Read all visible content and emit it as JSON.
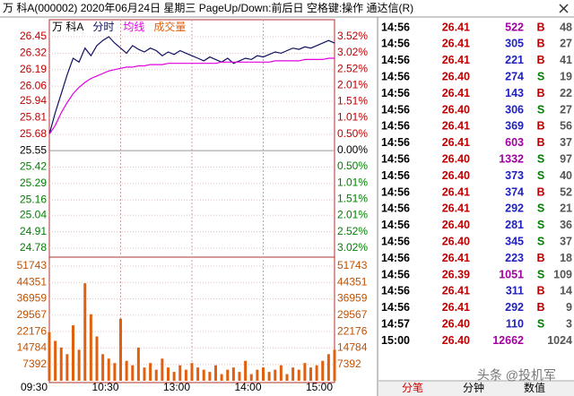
{
  "title_bar": {
    "text": "万 科A(000002) 2020年06月24日 星期三 PageUp/Down:前后日 空格键:操作 通达信(R)"
  },
  "chart_data": [
    {
      "type": "line",
      "title": "万 科A",
      "x": [
        "09:30",
        "09:35",
        "09:40",
        "09:45",
        "09:50",
        "09:55",
        "10:00",
        "10:05",
        "10:10",
        "10:15",
        "10:20",
        "10:25",
        "10:30",
        "10:35",
        "10:40",
        "10:45",
        "10:50",
        "10:55",
        "11:00",
        "11:05",
        "11:10",
        "11:15",
        "11:20",
        "11:25",
        "13:00",
        "13:05",
        "13:10",
        "13:15",
        "13:20",
        "13:25",
        "13:30",
        "13:35",
        "13:40",
        "13:45",
        "13:50",
        "13:55",
        "14:00",
        "14:05",
        "14:10",
        "14:15",
        "14:20",
        "14:25",
        "14:30",
        "14:35",
        "14:40",
        "14:45",
        "14:50",
        "14:55",
        "15:00"
      ],
      "xticks": [
        "09:30",
        "10:30",
        "13:00",
        "14:00",
        "15:00"
      ],
      "series": [
        {
          "name": "分时",
          "color": "#101060",
          "values": [
            25.68,
            25.85,
            26.0,
            26.15,
            26.28,
            26.25,
            26.36,
            26.3,
            26.38,
            26.42,
            26.45,
            26.4,
            26.36,
            26.32,
            26.38,
            26.35,
            26.33,
            26.36,
            26.34,
            26.3,
            26.33,
            26.31,
            26.34,
            26.32,
            26.3,
            26.28,
            26.26,
            26.29,
            26.27,
            26.25,
            26.28,
            26.24,
            26.26,
            26.28,
            26.27,
            26.3,
            26.29,
            26.31,
            26.33,
            26.32,
            26.34,
            26.36,
            26.35,
            26.37,
            26.36,
            26.38,
            26.4,
            26.42,
            26.4
          ]
        },
        {
          "name": "均线",
          "color": "#e000e0",
          "values": [
            25.68,
            25.75,
            25.85,
            25.93,
            26.0,
            26.05,
            26.09,
            26.12,
            26.14,
            26.16,
            26.18,
            26.19,
            26.2,
            26.21,
            26.21,
            26.22,
            26.22,
            26.23,
            26.23,
            26.23,
            26.24,
            26.24,
            26.24,
            26.24,
            26.24,
            26.24,
            26.24,
            26.24,
            26.24,
            26.25,
            26.25,
            26.25,
            26.25,
            26.25,
            26.25,
            26.25,
            26.25,
            26.25,
            26.26,
            26.26,
            26.26,
            26.26,
            26.26,
            26.27,
            26.27,
            26.27,
            26.27,
            26.28,
            26.28
          ]
        }
      ],
      "ylim": [
        24.78,
        26.45
      ],
      "yticks": [
        26.45,
        26.32,
        26.19,
        26.06,
        25.94,
        25.81,
        25.68,
        25.55,
        25.42,
        25.29,
        25.16,
        25.04,
        24.91,
        24.78
      ],
      "y2lim": [
        -3.02,
        3.52
      ],
      "y2ticks": [
        {
          "value": 3.52,
          "label": "3.52%"
        },
        {
          "value": 3.02,
          "label": "3.02%"
        },
        {
          "value": 2.52,
          "label": "2.52%"
        },
        {
          "value": 2.01,
          "label": "2.01%"
        },
        {
          "value": 1.51,
          "label": "1.51%"
        },
        {
          "value": 1.01,
          "label": "1.01%"
        },
        {
          "value": 0.5,
          "label": "0.50%"
        },
        {
          "value": 0,
          "label": "0.00%"
        },
        {
          "value": -0.5,
          "label": "0.50%"
        },
        {
          "value": -1.01,
          "label": "1.01%"
        },
        {
          "value": -1.51,
          "label": "1.51%"
        },
        {
          "value": -2.01,
          "label": "2.01%"
        },
        {
          "value": -2.52,
          "label": "2.52%"
        },
        {
          "value": -3.02,
          "label": "3.02%"
        }
      ],
      "grid": true
    },
    {
      "type": "bar",
      "title": "成交量",
      "color": "#e06010",
      "values": [
        22000,
        18000,
        15000,
        12000,
        25000,
        14000,
        44000,
        30000,
        20000,
        12000,
        10000,
        8000,
        28000,
        9000,
        7000,
        15000,
        6000,
        8000,
        5000,
        10000,
        6000,
        4000,
        7000,
        5000,
        8000,
        6000,
        5000,
        4000,
        7000,
        3000,
        5000,
        6000,
        4000,
        9000,
        3000,
        5000,
        6000,
        4000,
        5000,
        7000,
        3000,
        6000,
        5000,
        8000,
        6000,
        7000,
        9000,
        12000,
        14000
      ],
      "ylim": [
        0,
        51743
      ],
      "yticks": [
        51743,
        44351,
        36959,
        29567,
        22176,
        14784,
        7392
      ]
    }
  ],
  "trades": {
    "rows": [
      {
        "time": "14:56",
        "price": 26.41,
        "volume": 522,
        "volume_color": "#a000a0",
        "side": "B",
        "count": 48
      },
      {
        "time": "14:56",
        "price": 26.41,
        "volume": 305,
        "volume_color": "#2020c0",
        "side": "B",
        "count": 27
      },
      {
        "time": "14:56",
        "price": 26.41,
        "volume": 221,
        "volume_color": "#2020c0",
        "side": "B",
        "count": 41
      },
      {
        "time": "14:56",
        "price": 26.4,
        "volume": 274,
        "volume_color": "#2020c0",
        "side": "S",
        "count": 19
      },
      {
        "time": "14:56",
        "price": 26.41,
        "volume": 143,
        "volume_color": "#2020c0",
        "side": "B",
        "count": 22
      },
      {
        "time": "14:56",
        "price": 26.4,
        "volume": 306,
        "volume_color": "#2020c0",
        "side": "S",
        "count": 27
      },
      {
        "time": "14:56",
        "price": 26.41,
        "volume": 369,
        "volume_color": "#2020c0",
        "side": "B",
        "count": 56
      },
      {
        "time": "14:56",
        "price": 26.41,
        "volume": 603,
        "volume_color": "#a000a0",
        "side": "B",
        "count": 37
      },
      {
        "time": "14:56",
        "price": 26.4,
        "volume": 1332,
        "volume_color": "#a000a0",
        "side": "S",
        "count": 97
      },
      {
        "time": "14:56",
        "price": 26.4,
        "volume": 373,
        "volume_color": "#2020c0",
        "side": "S",
        "count": 40
      },
      {
        "time": "14:56",
        "price": 26.41,
        "volume": 374,
        "volume_color": "#2020c0",
        "side": "B",
        "count": 52
      },
      {
        "time": "14:56",
        "price": 26.41,
        "volume": 292,
        "volume_color": "#2020c0",
        "side": "S",
        "count": 21
      },
      {
        "time": "14:56",
        "price": 26.4,
        "volume": 281,
        "volume_color": "#2020c0",
        "side": "S",
        "count": 36
      },
      {
        "time": "14:56",
        "price": 26.4,
        "volume": 345,
        "volume_color": "#2020c0",
        "side": "S",
        "count": 37
      },
      {
        "time": "14:56",
        "price": 26.41,
        "volume": 223,
        "volume_color": "#2020c0",
        "side": "B",
        "count": 18
      },
      {
        "time": "14:56",
        "price": 26.39,
        "volume": 1051,
        "volume_color": "#a000a0",
        "side": "S",
        "count": 109
      },
      {
        "time": "14:56",
        "price": 26.41,
        "volume": 311,
        "volume_color": "#2020c0",
        "side": "B",
        "count": 14
      },
      {
        "time": "14:56",
        "price": 26.41,
        "volume": 292,
        "volume_color": "#2020c0",
        "side": "B",
        "count": 9
      },
      {
        "time": "14:57",
        "price": 26.4,
        "volume": 110,
        "volume_color": "#2020c0",
        "side": "S",
        "count": 3
      },
      {
        "time": "15:00",
        "price": 26.4,
        "volume": 12662,
        "volume_color": "#a000a0",
        "side": null,
        "count": 1024
      }
    ]
  },
  "tabs": [
    "分笔",
    "分钟",
    "数值"
  ],
  "watermark": "头条 @投机军"
}
